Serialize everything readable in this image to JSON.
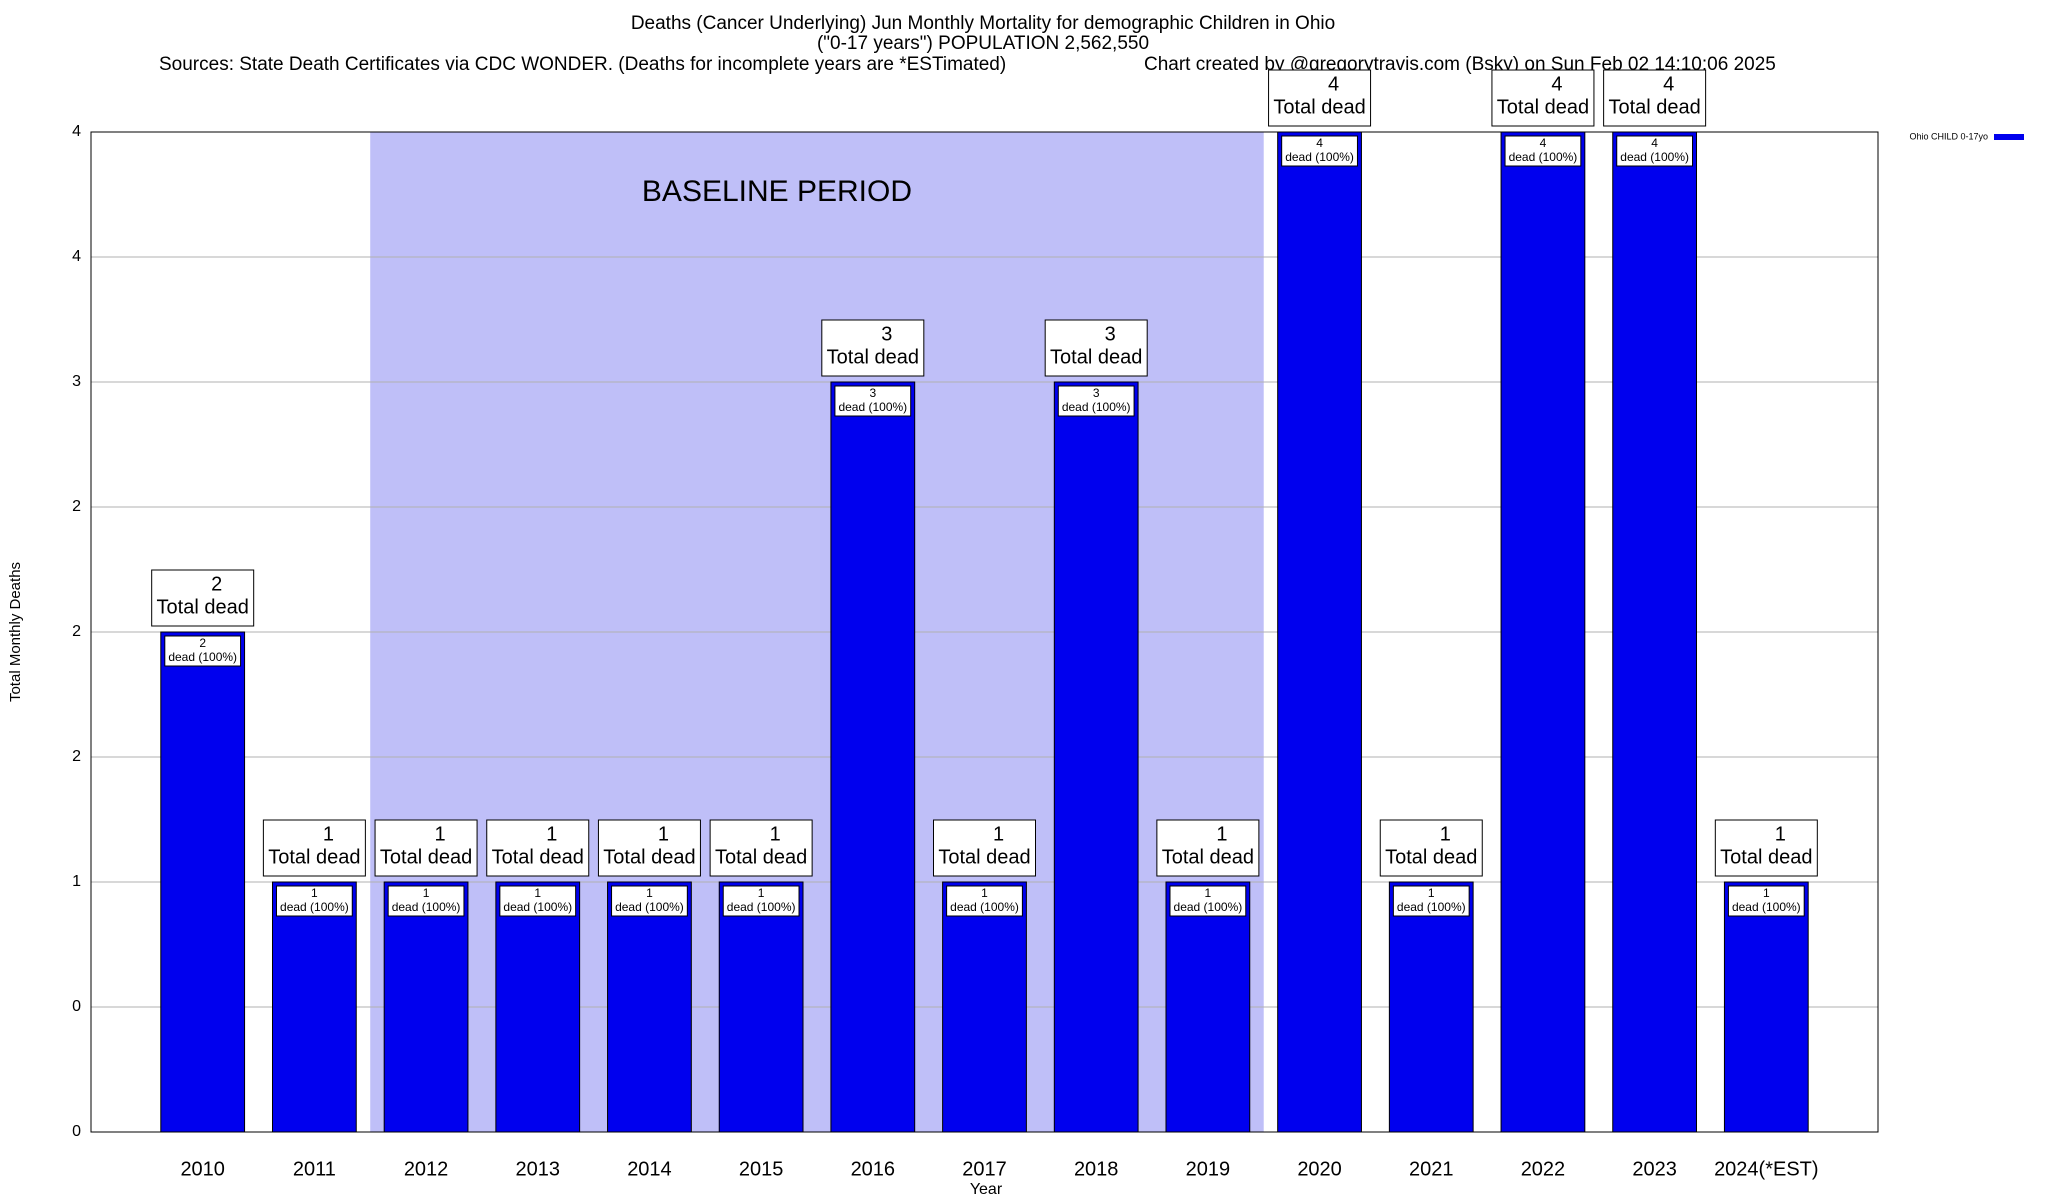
{
  "chart_data": {
    "type": "bar",
    "title": "Deaths (Cancer Underlying) Jun Monthly Mortality for demographic Children in Ohio",
    "subtitle": "(\"0-17 years\") POPULATION 2,562,550",
    "source": "Sources: State Death Certificates via CDC WONDER. (Deaths for incomplete years are *ESTimated)",
    "credit": "Chart created by @gregorytravis.com (Bsky) on Sun Feb 02 14:10:06 2025",
    "x_label": "Year",
    "y_label": "Total Monthly Deaths",
    "categories": [
      "2010",
      "2011",
      "2012",
      "2013",
      "2014",
      "2015",
      "2016",
      "2017",
      "2018",
      "2019",
      "2020",
      "2021",
      "2022",
      "2023",
      "2024(*EST)"
    ],
    "series": [
      {
        "name": "Ohio CHILD 0-17yo",
        "color": "#0000ee",
        "values": [
          2,
          1,
          1,
          1,
          1,
          1,
          3,
          1,
          3,
          1,
          4,
          1,
          4,
          4,
          1
        ]
      }
    ],
    "total_label": "Total dead",
    "bar_label": "dead (100%)",
    "baseline": {
      "label": "BASELINE PERIOD",
      "from": "2012",
      "to": "2019",
      "color": "#bfbff8"
    },
    "ylim": [
      0,
      4
    ],
    "yticks": [
      0,
      {
        "value": 0.5,
        "label": "0"
      },
      1,
      {
        "value": 1.5,
        "label": "2"
      },
      2,
      {
        "value": 2.5,
        "label": "2"
      },
      3,
      {
        "value": 3.5,
        "label": "4"
      },
      4
    ],
    "grid": true,
    "legend": "top-right"
  }
}
